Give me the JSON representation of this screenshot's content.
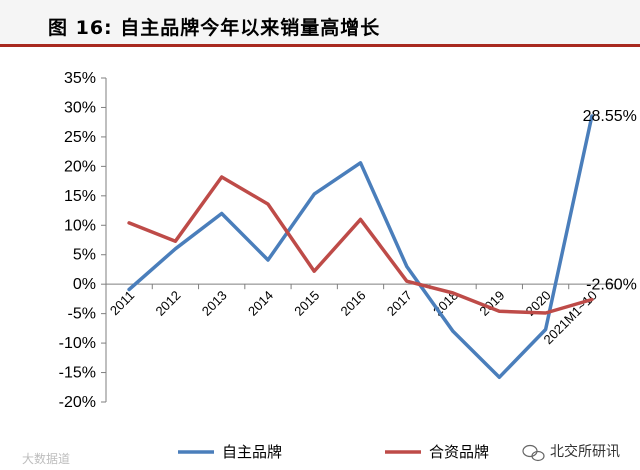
{
  "figure": {
    "title": "图 16:  自主品牌今年以来销量高增长"
  },
  "chart_data": {
    "type": "line",
    "categories": [
      "2011",
      "2012",
      "2013",
      "2014",
      "2015",
      "2016",
      "2017",
      "2018",
      "2019",
      "2020",
      "2021M1~10"
    ],
    "series": [
      {
        "name": "自主品牌",
        "color": "#4a7ebb",
        "values": [
          -0.9,
          6.0,
          12.0,
          4.1,
          15.3,
          20.6,
          3.0,
          -8.0,
          -15.8,
          -7.7,
          28.55
        ]
      },
      {
        "name": "合资品牌",
        "color": "#be4b48",
        "values": [
          10.4,
          7.3,
          18.2,
          13.6,
          2.2,
          11.0,
          0.5,
          -1.5,
          -4.6,
          -4.9,
          -2.6
        ]
      }
    ],
    "ylim": [
      -20,
      35
    ],
    "ytick_step": 5,
    "ytick_labels": [
      "-20%",
      "-15%",
      "-10%",
      "-5%",
      "0%",
      "5%",
      "10%",
      "15%",
      "20%",
      "25%",
      "30%",
      "35%"
    ],
    "annotations": [
      {
        "series": 0,
        "index": 10,
        "text": "28.55%"
      },
      {
        "series": 1,
        "index": 10,
        "text": "-2.60%"
      }
    ],
    "grid": false,
    "legend_position": "bottom"
  },
  "watermarks": {
    "left": "大数据道",
    "right": "北交所研讯"
  }
}
